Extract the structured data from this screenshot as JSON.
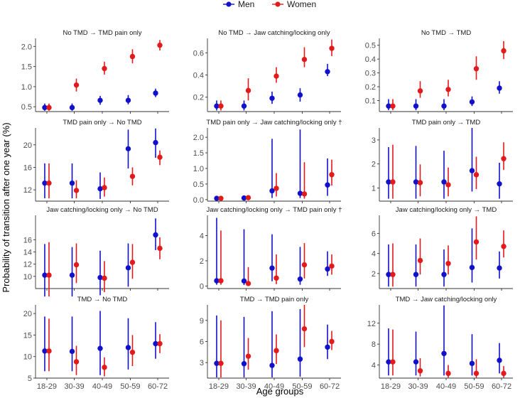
{
  "chart_data": {
    "type": "scatter",
    "chart_kind": "point estimates with 95% confidence interval error bars, small multiples (4x3 facets)",
    "xlabel": "Age groups",
    "ylabel": "Probability of transition after one year (%)",
    "categories": [
      "18-29",
      "30-39",
      "40-49",
      "50-59",
      "60-72"
    ],
    "legend": {
      "position": "top",
      "entries": [
        {
          "name": "Men",
          "color": "#1111cc"
        },
        {
          "name": "Women",
          "color": "#e31a1c"
        }
      ]
    },
    "panels": [
      {
        "title": "No TMD → TMD pain only",
        "ylim": [
          0.38,
          2.2
        ],
        "yticks": [
          0.5,
          1.0,
          1.5,
          2.0
        ],
        "tick_labels": [
          "0.5",
          "1.0",
          "1.5",
          "2.0"
        ],
        "series": [
          {
            "name": "Men",
            "values": [
              0.48,
              0.48,
              0.66,
              0.66,
              0.84
            ],
            "lower": [
              0.4,
              0.4,
              0.55,
              0.56,
              0.74
            ],
            "upper": [
              0.58,
              0.58,
              0.77,
              0.79,
              0.95
            ]
          },
          {
            "name": "Women",
            "values": [
              0.48,
              1.04,
              1.45,
              1.75,
              2.03
            ],
            "lower": [
              0.4,
              0.88,
              1.3,
              1.58,
              1.9
            ],
            "upper": [
              0.58,
              1.2,
              1.62,
              1.93,
              2.16
            ]
          }
        ]
      },
      {
        "title": "No TMD → Jaw catching/locking only",
        "ylim": [
          0.07,
          0.73
        ],
        "yticks": [
          0.2,
          0.4,
          0.6
        ],
        "tick_labels": [
          "0.2",
          "0.4",
          "0.6"
        ],
        "series": [
          {
            "name": "Men",
            "values": [
              0.12,
              0.12,
              0.19,
              0.22,
              0.43
            ],
            "lower": [
              0.08,
              0.08,
              0.14,
              0.16,
              0.39
            ],
            "upper": [
              0.17,
              0.17,
              0.25,
              0.28,
              0.5
            ]
          },
          {
            "name": "Women",
            "values": [
              0.12,
              0.26,
              0.39,
              0.54,
              0.64
            ],
            "lower": [
              0.08,
              0.17,
              0.33,
              0.47,
              0.57
            ],
            "upper": [
              0.17,
              0.37,
              0.47,
              0.65,
              0.72
            ]
          }
        ]
      },
      {
        "title": "No TMD → TMD",
        "ylim": [
          0.02,
          0.55
        ],
        "yticks": [
          0.1,
          0.2,
          0.3,
          0.4,
          0.5
        ],
        "tick_labels": [
          "0.1",
          "0.2",
          "0.3",
          "0.4",
          "0.5"
        ],
        "series": [
          {
            "name": "Men",
            "values": [
              0.06,
              0.06,
              0.06,
              0.09,
              0.19
            ],
            "lower": [
              0.03,
              0.03,
              0.03,
              0.06,
              0.15
            ],
            "upper": [
              0.11,
              0.11,
              0.11,
              0.13,
              0.24
            ]
          },
          {
            "name": "Women",
            "values": [
              0.06,
              0.17,
              0.18,
              0.33,
              0.46
            ],
            "lower": [
              0.03,
              0.12,
              0.13,
              0.25,
              0.4
            ],
            "upper": [
              0.11,
              0.24,
              0.25,
              0.42,
              0.53
            ]
          }
        ]
      },
      {
        "title": "TMD pain only → No TMD",
        "ylim": [
          10.0,
          23.0
        ],
        "yticks": [
          12,
          16,
          20
        ],
        "tick_labels": [
          "12",
          "16",
          "20"
        ],
        "series": [
          {
            "name": "Men",
            "values": [
              13.2,
              13.2,
              12.2,
              19.3,
              20.4
            ],
            "lower": [
              10.5,
              10.5,
              10.4,
              15.8,
              17.7
            ],
            "upper": [
              16.7,
              16.7,
              15.1,
              22.7,
              22.9
            ]
          },
          {
            "name": "Women",
            "values": [
              13.2,
              11.9,
              12.4,
              14.4,
              17.8
            ],
            "lower": [
              10.5,
              10.5,
              10.8,
              12.8,
              16.4
            ],
            "upper": [
              16.7,
              13.7,
              14.2,
              16.0,
              19.0
            ]
          }
        ]
      },
      {
        "title": "TMD pain only → Jaw catching/locking only †",
        "ylim": [
          -0.05,
          2.3
        ],
        "yticks": [
          0.0,
          0.5,
          1.0,
          1.5,
          2.0
        ],
        "tick_labels": [
          "0.0",
          "0.5",
          "1.0",
          "1.5",
          "2.0"
        ],
        "series": [
          {
            "name": "Men",
            "values": [
              0.04,
              0.05,
              0.28,
              0.2,
              0.47
            ],
            "lower": [
              0.02,
              0.02,
              0.05,
              0.05,
              0.12
            ],
            "upper": [
              0.08,
              0.1,
              1.95,
              2.25,
              1.32
            ]
          },
          {
            "name": "Women",
            "values": [
              0.04,
              0.06,
              0.36,
              0.18,
              0.8
            ],
            "lower": [
              0.02,
              0.02,
              0.1,
              0.03,
              0.45
            ],
            "upper": [
              0.08,
              0.12,
              0.85,
              1.2,
              1.28
            ]
          }
        ]
      },
      {
        "title": "TMD pain only → TMD",
        "ylim": [
          0.45,
          3.5
        ],
        "yticks": [
          1,
          2,
          3
        ],
        "tick_labels": [
          "1",
          "2",
          "3"
        ],
        "series": [
          {
            "name": "Men",
            "values": [
              1.25,
              1.25,
              1.25,
              1.72,
              1.17
            ],
            "lower": [
              0.55,
              0.55,
              0.55,
              0.85,
              0.55
            ],
            "upper": [
              2.7,
              2.75,
              2.55,
              3.5,
              2.05
            ]
          },
          {
            "name": "Women",
            "values": [
              1.25,
              1.22,
              1.13,
              1.55,
              2.22
            ],
            "lower": [
              0.55,
              0.65,
              0.65,
              0.95,
              1.75
            ],
            "upper": [
              2.8,
              1.98,
              1.85,
              2.3,
              2.9
            ]
          }
        ]
      },
      {
        "title": "Jaw catching/locking only → No TMD",
        "ylim": [
          8.0,
          20.0
        ],
        "yticks": [
          10,
          12,
          14,
          16
        ],
        "tick_labels": [
          "10",
          "12",
          "14",
          "16"
        ],
        "series": [
          {
            "name": "Men",
            "values": [
              10.2,
              10.2,
              9.8,
              11.4,
              16.8
            ],
            "lower": [
              6.7,
              6.7,
              6.9,
              8.3,
              14.3
            ],
            "upper": [
              15.3,
              14.8,
              14.2,
              15.4,
              19.5
            ]
          },
          {
            "name": "Women",
            "values": [
              10.2,
              11.9,
              9.7,
              12.3,
              14.6
            ],
            "lower": [
              6.7,
              8.9,
              7.4,
              9.6,
              12.8
            ],
            "upper": [
              15.6,
              15.4,
              12.5,
              15.3,
              16.4
            ]
          }
        ]
      },
      {
        "title": "Jaw catching/locking only → TMD pain only †",
        "ylim": [
          -0.2,
          5.6
        ],
        "yticks": [
          0,
          2,
          4
        ],
        "tick_labels": [
          "0",
          "2",
          "4"
        ],
        "series": [
          {
            "name": "Men",
            "values": [
              0.42,
              0.4,
              1.42,
              0.55,
              1.35
            ],
            "lower": [
              0.1,
              0.08,
              0.38,
              0.1,
              0.8
            ],
            "upper": [
              5.4,
              4.5,
              4.1,
              3.1,
              2.75
            ]
          },
          {
            "name": "Women",
            "values": [
              0.42,
              0.2,
              0.63,
              1.68,
              1.58
            ],
            "lower": [
              0.1,
              0.04,
              0.15,
              0.6,
              0.9
            ],
            "upper": [
              4.4,
              1.5,
              2.5,
              3.4,
              2.5
            ]
          }
        ]
      },
      {
        "title": "Jaw catching/locking only → TMD",
        "ylim": [
          0.5,
          7.8
        ],
        "yticks": [
          2,
          4,
          6
        ],
        "tick_labels": [
          "2",
          "4",
          "6"
        ],
        "series": [
          {
            "name": "Men",
            "values": [
              1.9,
              1.9,
              1.9,
              2.6,
              2.55
            ],
            "lower": [
              0.7,
              0.7,
              0.7,
              1.1,
              1.5
            ],
            "upper": [
              4.9,
              4.9,
              4.4,
              6.5,
              4.2
            ]
          },
          {
            "name": "Women",
            "values": [
              1.9,
              3.3,
              3.0,
              5.15,
              4.7
            ],
            "lower": [
              0.7,
              1.9,
              1.9,
              3.4,
              3.6
            ],
            "upper": [
              5.0,
              5.5,
              4.8,
              7.7,
              6.3
            ]
          }
        ]
      },
      {
        "title": "TMD → No TMD",
        "ylim": [
          5.0,
          22.0
        ],
        "yticks": [
          5,
          10,
          15,
          20
        ],
        "tick_labels": [
          "5",
          "10",
          "15",
          "20"
        ],
        "series": [
          {
            "name": "Men",
            "values": [
              11.3,
              11.2,
              11.9,
              12.1,
              13.0
            ],
            "lower": [
              6.6,
              6.6,
              5.7,
              7.0,
              9.5
            ],
            "upper": [
              19.3,
              19.3,
              20.6,
              18.9,
              18.0
            ]
          },
          {
            "name": "Women",
            "values": [
              11.3,
              8.8,
              7.5,
              11.0,
              13.0
            ],
            "lower": [
              6.6,
              5.7,
              5.4,
              7.8,
              10.8
            ],
            "upper": [
              18.8,
              12.5,
              9.8,
              15.0,
              15.2
            ]
          }
        ]
      },
      {
        "title": "TMD → TMD pain only",
        "ylim": [
          0.8,
          11.2
        ],
        "yticks": [
          3,
          6,
          9
        ],
        "tick_labels": [
          "3",
          "6",
          "9"
        ],
        "series": [
          {
            "name": "Men",
            "values": [
              2.9,
              2.85,
              2.6,
              3.5,
              5.2
            ],
            "lower": [
              0.9,
              0.9,
              0.9,
              1.0,
              3.5
            ],
            "upper": [
              9.7,
              9.5,
              10.3,
              10.6,
              8.4
            ]
          },
          {
            "name": "Women",
            "values": [
              2.9,
              3.9,
              4.7,
              7.8,
              6.0
            ],
            "lower": [
              0.9,
              2.0,
              2.8,
              5.2,
              4.8
            ],
            "upper": [
              9.0,
              6.5,
              7.0,
              11.2,
              7.5
            ]
          }
        ]
      },
      {
        "title": "TMD → Jaw catching/locking only",
        "ylim": [
          1.5,
          15.5
        ],
        "yticks": [
          4,
          8,
          12
        ],
        "tick_labels": [
          "4",
          "8",
          "12"
        ],
        "series": [
          {
            "name": "Men",
            "values": [
              4.6,
              4.6,
              6.2,
              4.3,
              4.9
            ],
            "lower": [
              2.0,
              2.0,
              2.0,
              2.0,
              2.4
            ],
            "upper": [
              11.0,
              10.4,
              15.4,
              9.9,
              8.2
            ]
          },
          {
            "name": "Women",
            "values": [
              4.6,
              2.9,
              2.4,
              2.4,
              2.4
            ],
            "lower": [
              2.0,
              1.8,
              1.6,
              1.6,
              1.6
            ],
            "upper": [
              10.8,
              5.3,
              4.0,
              5.1,
              3.8
            ]
          }
        ]
      }
    ]
  }
}
